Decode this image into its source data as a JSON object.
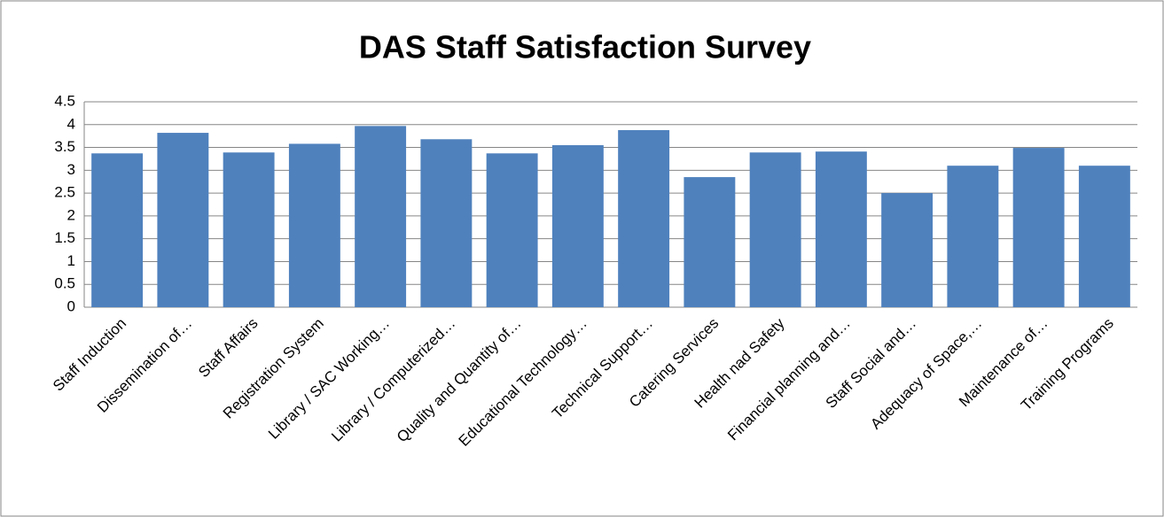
{
  "chart_data": {
    "type": "bar",
    "title": "DAS Staff Satisfaction Survey",
    "categories": [
      "Staff Induction",
      "Dissemination of…",
      "Staff Affairs",
      "Registration System",
      "Library / SAC Working…",
      "Library / Computerized…",
      "Quality and Quantity of…",
      "Educational Technology…",
      "Technical Support…",
      "Catering Services",
      "Health nad Safety",
      "Financial planning and…",
      "Staff Social and…",
      "Adequacy of Space,…",
      "Maintenance of…",
      "Training Programs"
    ],
    "values": [
      3.37,
      3.82,
      3.39,
      3.58,
      3.97,
      3.68,
      3.37,
      3.55,
      3.88,
      2.85,
      3.39,
      3.41,
      2.5,
      3.1,
      3.49,
      3.1
    ],
    "color": "#4f81bd",
    "ylim": [
      0,
      4.5
    ],
    "yticks": [
      0,
      0.5,
      1,
      1.5,
      2,
      2.5,
      3,
      3.5,
      4,
      4.5
    ],
    "grid": true
  }
}
